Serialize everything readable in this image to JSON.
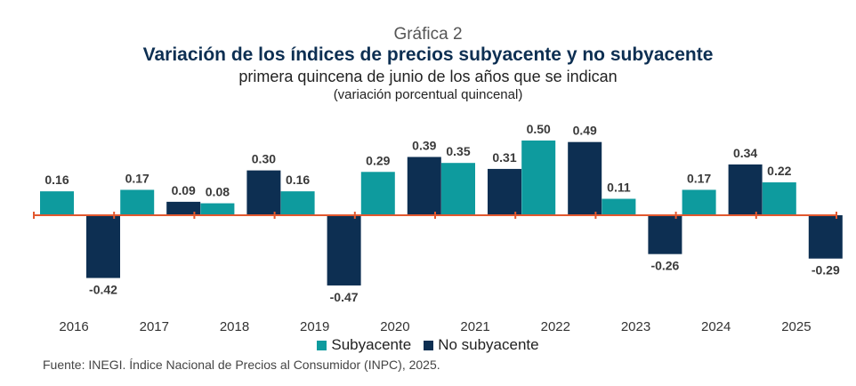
{
  "header": {
    "figure_label": "Gráfica 2",
    "title": "Variación de los índices de precios subyacente y no subyacente",
    "subtitle": "primera quincena de junio de los años que se indican",
    "unit": "(variación porcentual quincenal)"
  },
  "legend": {
    "items": [
      {
        "label": "Subyacente",
        "color": "#0e9b9e"
      },
      {
        "label": "No subyacente",
        "color": "#0d2f52"
      }
    ]
  },
  "source": {
    "text": "Fuente: INEGI. Índice Nacional de Precios al Consumidor (INPC), 2025."
  },
  "colors": {
    "subyacente": "#0e9b9e",
    "no_subyacente": "#0d2f52",
    "axis": "#e2582f",
    "labels": "#3a3a3a"
  },
  "chart_data": {
    "type": "bar",
    "categories": [
      "2016",
      "2017",
      "2018",
      "2019",
      "2020",
      "2021",
      "2022",
      "2023",
      "2024",
      "2025"
    ],
    "series": [
      {
        "name": "Subyacente",
        "values": [
          0.16,
          0.17,
          0.08,
          0.16,
          0.29,
          0.35,
          0.5,
          0.11,
          0.17,
          0.22
        ]
      },
      {
        "name": "No subyacente",
        "values": [
          -0.42,
          0.09,
          0.3,
          -0.47,
          0.39,
          0.31,
          0.49,
          -0.26,
          0.34,
          -0.29
        ]
      }
    ],
    "data_labels": {
      "Subyacente": [
        "0.16",
        "0.17",
        "0.08",
        "0.16",
        "0.29",
        "0.35",
        "0.50",
        "0.11",
        "0.17",
        "0.22"
      ],
      "No subyacente": [
        "-0.42",
        "0.09",
        "0.30",
        "-0.47",
        "0.39",
        "0.31",
        "0.49",
        "-0.26",
        "0.34",
        "-0.29"
      ]
    },
    "ylim": [
      -0.5,
      0.5
    ],
    "grid": false,
    "legend_position": "bottom-center"
  }
}
